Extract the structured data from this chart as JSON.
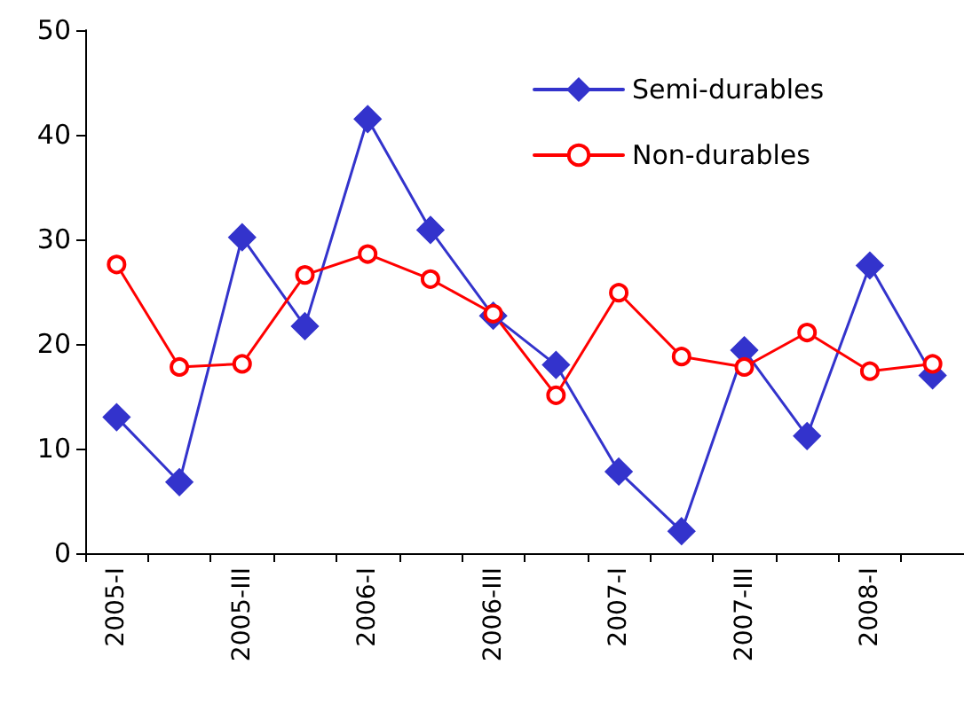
{
  "chart_data": {
    "type": "line",
    "categories": [
      "2005-I",
      null,
      "2005-III",
      null,
      "2006-I",
      null,
      "2006-III",
      null,
      "2007-I",
      null,
      "2007-III",
      null,
      "2008-I",
      null
    ],
    "series": [
      {
        "name": "Semi-durables",
        "color": "#3333cc",
        "marker": "diamond",
        "values": [
          13,
          6.8,
          30.2,
          21.7,
          41.5,
          30.9,
          22.7,
          18,
          7.8,
          2.1,
          19.4,
          11.2,
          27.5,
          17
        ]
      },
      {
        "name": "Non-durables",
        "color": "#ff0000",
        "marker": "circle",
        "values": [
          27.6,
          17.8,
          18.1,
          26.6,
          28.6,
          26.2,
          22.9,
          15.1,
          24.9,
          18.8,
          17.8,
          21.1,
          17.4,
          18.1
        ]
      }
    ],
    "ylim": [
      0,
      50
    ],
    "yticks": [
      0,
      10,
      20,
      30,
      40,
      50
    ],
    "grid": false,
    "legend": "top right",
    "line_style": "solid"
  }
}
